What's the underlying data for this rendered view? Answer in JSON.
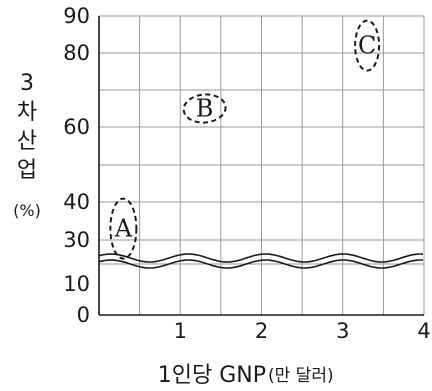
{
  "chart_data": {
    "type": "scatter",
    "title": "",
    "xlabel": "1인당 GNP",
    "xlabel_unit": "(만 달러)",
    "ylabel": "3차산업",
    "ylabel_unit": "(%)",
    "xlim": [
      0,
      4
    ],
    "ylim": [
      0,
      90
    ],
    "xticks": [
      "1",
      "2",
      "3",
      "4"
    ],
    "yticks": [
      "0",
      "10",
      "30",
      "40",
      "60",
      "80",
      "90"
    ],
    "axis_break": true,
    "grid": true,
    "points": [
      {
        "label": "A",
        "x": 0.3,
        "y": 33
      },
      {
        "label": "B",
        "x": 1.3,
        "y": 65
      },
      {
        "label": "C",
        "x": 3.3,
        "y": 82
      }
    ]
  }
}
